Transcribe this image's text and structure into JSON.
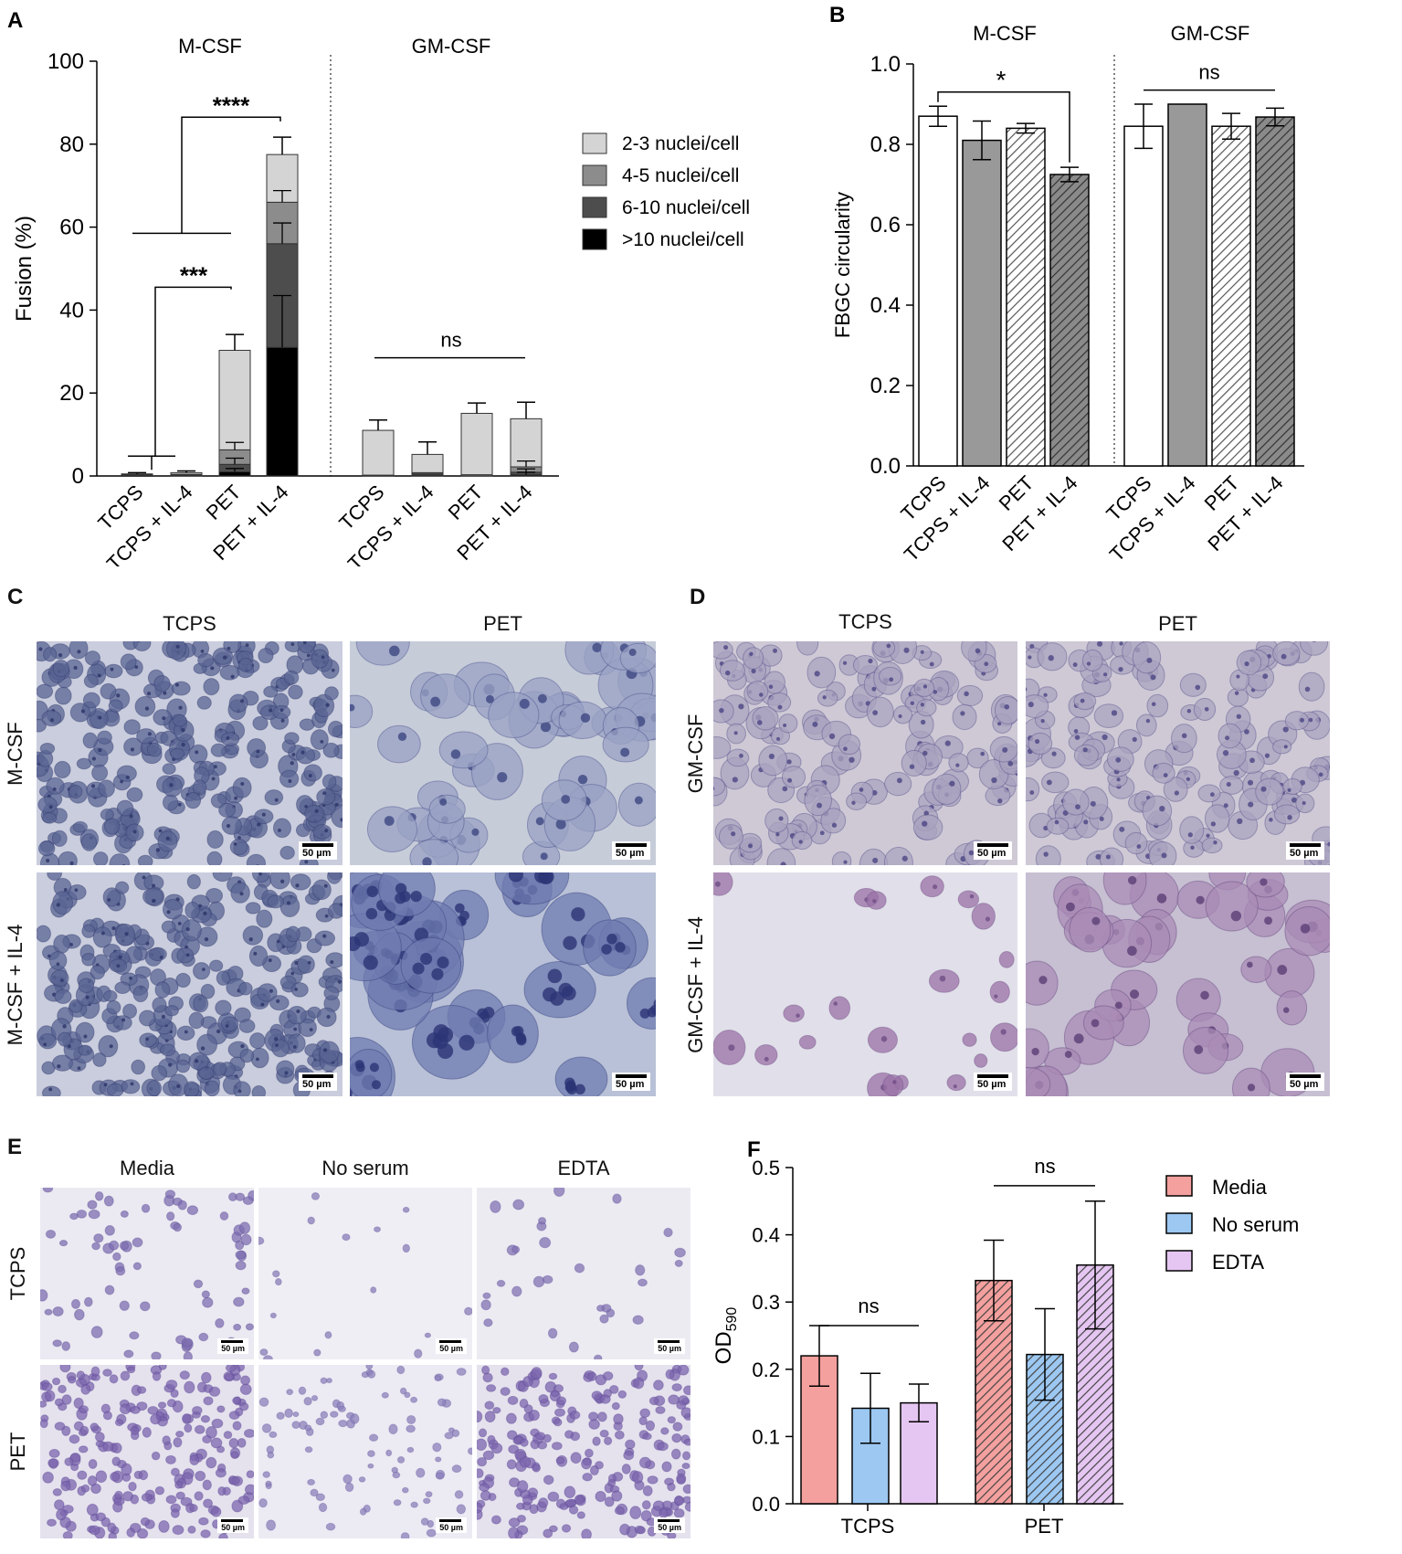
{
  "panel_letters": {
    "a": "A",
    "b": "B",
    "c": "C",
    "d": "D",
    "e": "E",
    "f": "F"
  },
  "chart_data": [
    {
      "id": "A",
      "type": "bar",
      "stacked": true,
      "ylabel": "Fusion (%)",
      "ylim": [
        0,
        100
      ],
      "yticks": [
        "0",
        "20",
        "40",
        "60",
        "80",
        "100"
      ],
      "group_titles": [
        "M-CSF",
        "GM-CSF"
      ],
      "categories": [
        "TCPS",
        "TCPS + IL-4",
        "PET",
        "PET + IL-4",
        "TCPS",
        "TCPS + IL-4",
        "PET",
        "PET + IL-4"
      ],
      "series": [
        {
          "name": ">10 nuclei/cell",
          "color": "#000000",
          "values": [
            0.1,
            0.2,
            1.0,
            31.0,
            0,
            0.2,
            0,
            0.3
          ]
        },
        {
          "name": "6-10 nuclei/cell",
          "color": "#4d4d4d",
          "values": [
            0.1,
            0.1,
            1.8,
            25.0,
            0,
            0.3,
            0,
            0.6
          ]
        },
        {
          "name": "4-5 nuclei/cell",
          "color": "#8c8c8c",
          "values": [
            0.1,
            0.1,
            3.5,
            10.0,
            0.2,
            0.3,
            0.3,
            1.3
          ]
        },
        {
          "name": "2-3 nuclei/cell",
          "color": "#d4d4d4",
          "values": [
            0.2,
            0.4,
            24.0,
            11.5,
            10.8,
            4.4,
            14.8,
            11.6
          ]
        }
      ],
      "totals": [
        0.5,
        0.8,
        30.3,
        77.5,
        11.0,
        5.2,
        15.1,
        13.8
      ],
      "error": [
        0.3,
        0.4,
        3.8,
        4.2,
        2.5,
        3.0,
        2.5,
        4.0
      ],
      "segment_errors": [
        {
          "bar": 2,
          "levels": [
            1.0,
            2.8,
            6.3
          ],
          "errs": [
            0.8,
            1.5,
            1.8
          ]
        },
        {
          "bar": 3,
          "levels": [
            31.0,
            56.0,
            66.0
          ],
          "errs": [
            12.5,
            5.0,
            2.8
          ]
        },
        {
          "bar": 7,
          "levels": [
            0.3,
            0.9,
            2.2
          ],
          "errs": [
            0.6,
            0.8,
            1.4
          ]
        }
      ],
      "annotations": [
        {
          "text": "****",
          "level": 86.5
        },
        {
          "text": "***",
          "level": 45.5
        },
        {
          "text": "ns",
          "level": 28.5
        }
      ],
      "legend_position": "right"
    },
    {
      "id": "B",
      "type": "bar",
      "ylabel": "FBGC circularity",
      "ylim": [
        0,
        1.0
      ],
      "yticks": [
        "0.0",
        "0.2",
        "0.4",
        "0.6",
        "0.8",
        "1.0"
      ],
      "group_titles": [
        "M-CSF",
        "GM-CSF"
      ],
      "categories": [
        "TCPS",
        "TCPS + IL-4",
        "PET",
        "PET + IL-4",
        "TCPS",
        "TCPS + IL-4",
        "PET",
        "PET + IL-4"
      ],
      "values": [
        0.87,
        0.81,
        0.84,
        0.725,
        0.845,
        0.9,
        0.845,
        0.868
      ],
      "error": [
        0.025,
        0.048,
        0.012,
        0.018,
        0.055,
        0.0,
        0.032,
        0.022
      ],
      "annotations": [
        {
          "text": "*"
        },
        {
          "text": "ns"
        }
      ]
    },
    {
      "id": "F",
      "type": "bar",
      "ylabel": "OD",
      "ylabel_sub": "590",
      "ylim": [
        0,
        0.5
      ],
      "yticks": [
        "0.0",
        "0.1",
        "0.2",
        "0.3",
        "0.4",
        "0.5"
      ],
      "categories": [
        "TCPS",
        "PET"
      ],
      "series": [
        {
          "name": "Media",
          "color": "#f4a09e",
          "values": [
            0.22,
            0.332
          ],
          "error": [
            0.045,
            0.06
          ]
        },
        {
          "name": "No serum",
          "color": "#9cc8f2",
          "values": [
            0.142,
            0.222
          ],
          "error": [
            0.052,
            0.068
          ]
        },
        {
          "name": "EDTA",
          "color": "#e5c6f2",
          "values": [
            0.15,
            0.355
          ],
          "error": [
            0.028,
            0.095
          ]
        }
      ],
      "annotations": [
        {
          "text": "ns"
        },
        {
          "text": "ns"
        }
      ],
      "legend_position": "right"
    }
  ],
  "panel_c": {
    "col_titles": [
      "TCPS",
      "PET"
    ],
    "row_labels": [
      "M-CSF",
      "M-CSF + IL-4"
    ]
  },
  "panel_d": {
    "col_titles": [
      "TCPS",
      "PET"
    ],
    "row_labels": [
      "GM-CSF",
      "GM-CSF + IL-4"
    ]
  },
  "panel_e": {
    "col_titles": [
      "Media",
      "No serum",
      "EDTA"
    ],
    "row_labels": [
      "TCPS",
      "PET"
    ]
  },
  "scale_bar_label": "50 µm",
  "colors": {
    "blue_stain": "#4f5c9a",
    "purple_stain": "#8a5d97",
    "crystal_violet": "#7a6aae"
  }
}
